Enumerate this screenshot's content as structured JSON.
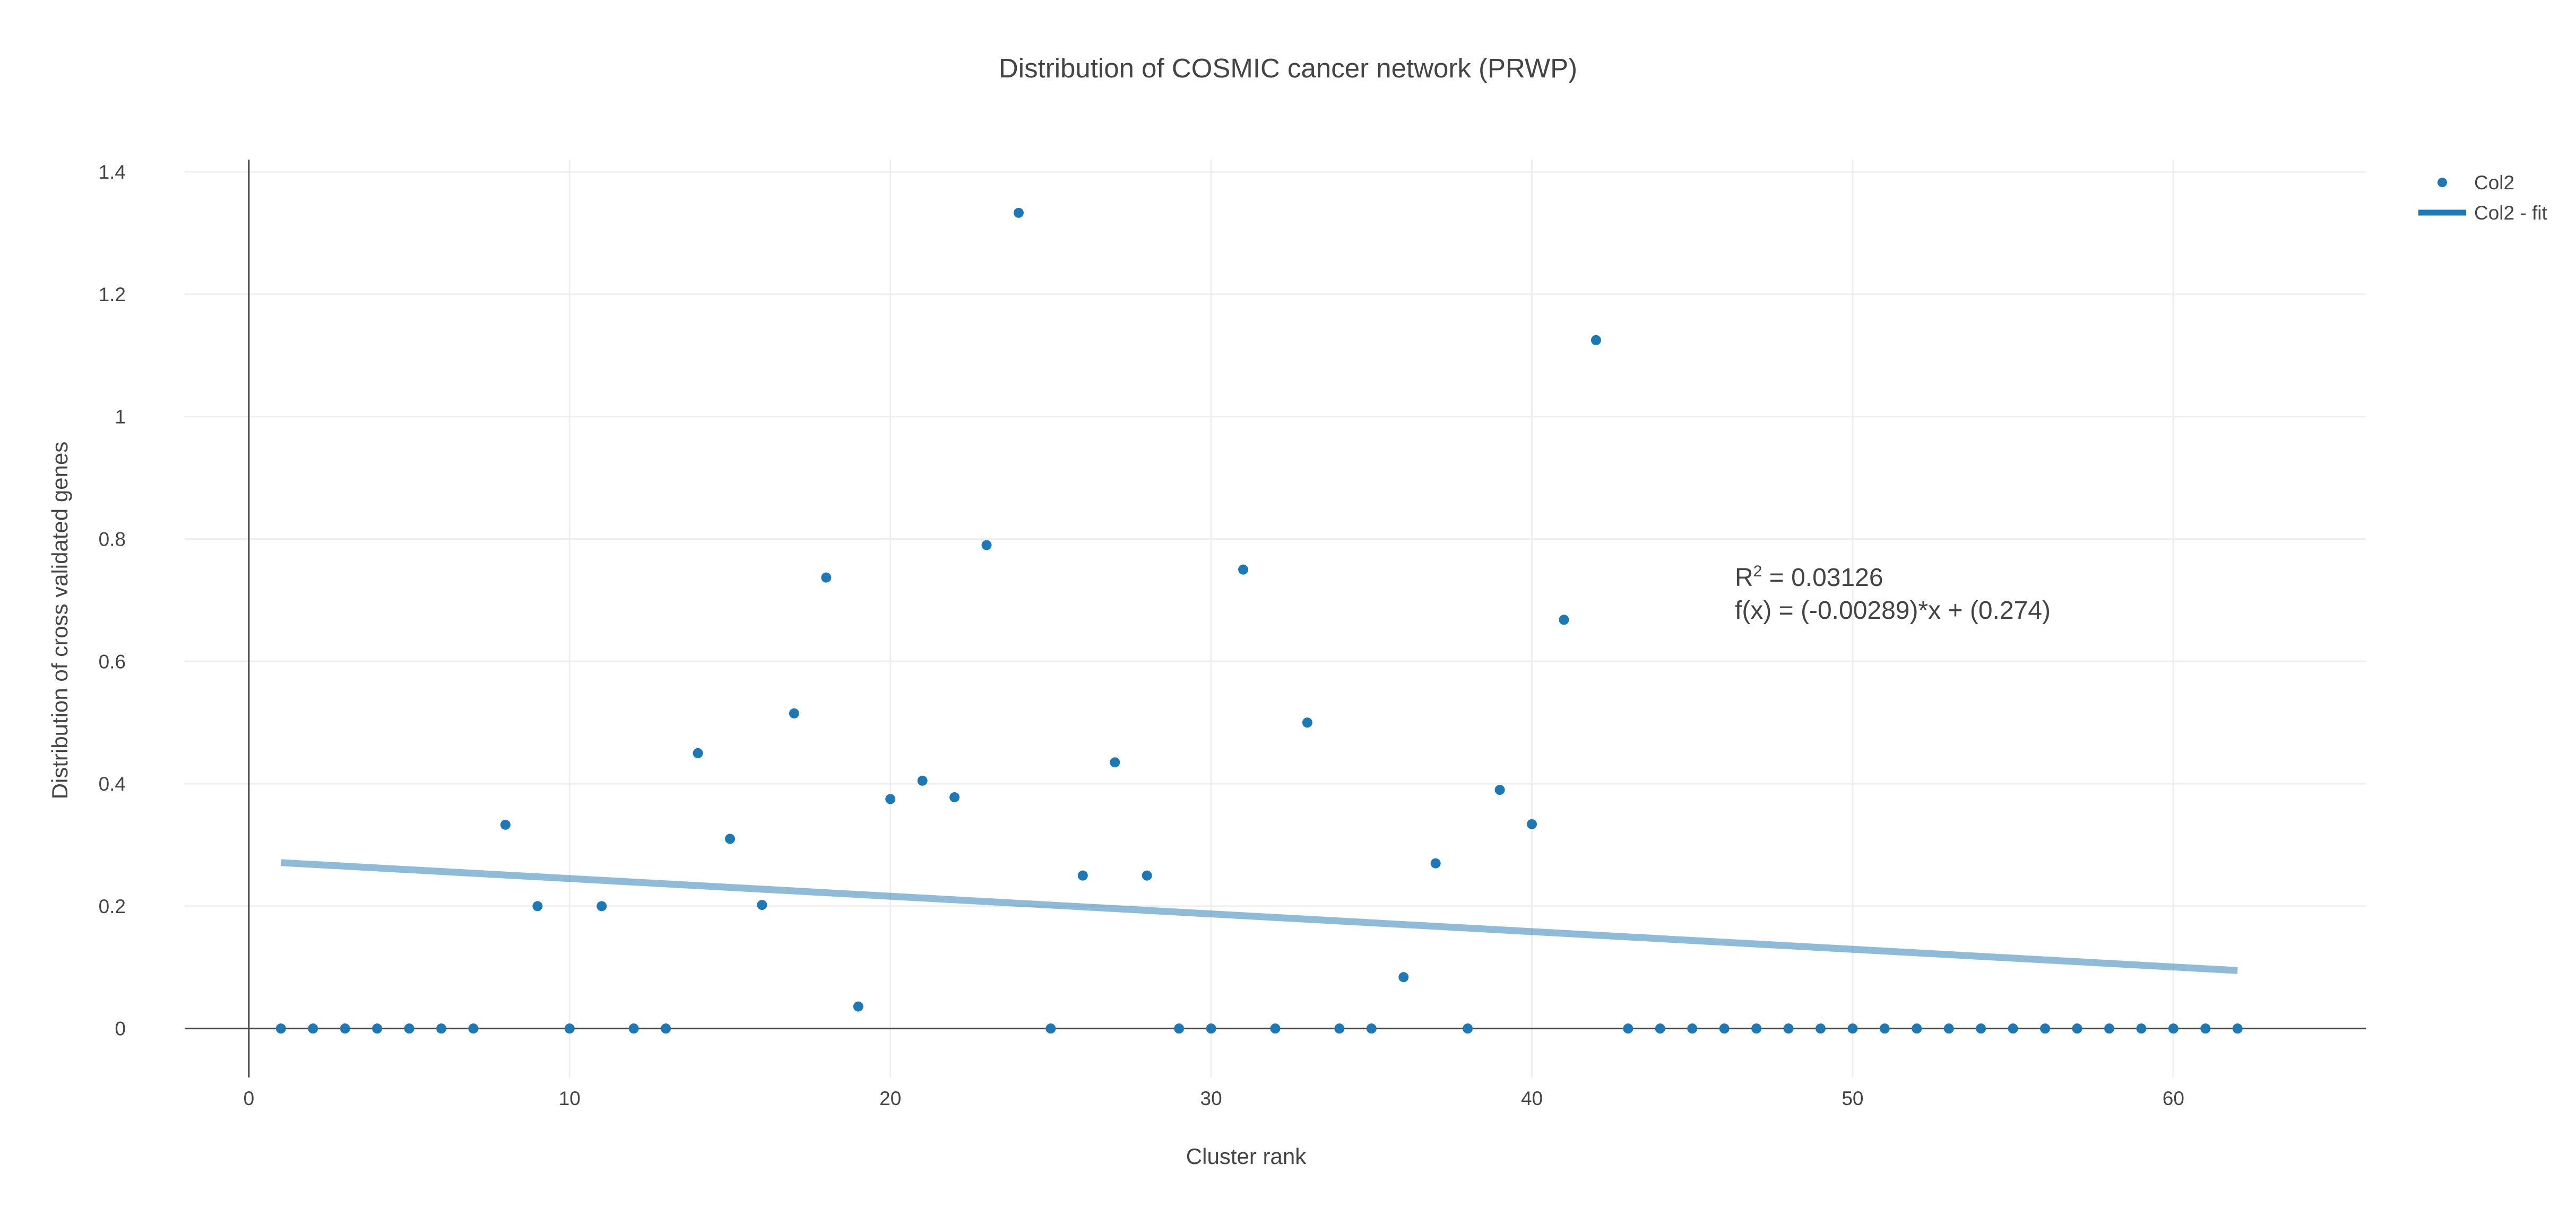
{
  "chart_data": {
    "type": "scatter",
    "title": "Distribution of COSMIC cancer network (PRWP)",
    "xlabel": "Cluster rank",
    "ylabel": "Distribution of cross validated genes",
    "xlim": [
      -2,
      66
    ],
    "ylim": [
      -0.08,
      1.42
    ],
    "x_ticks": [
      0,
      10,
      20,
      30,
      40,
      50,
      60
    ],
    "y_ticks": [
      0,
      0.2,
      0.4,
      0.6,
      0.8,
      1,
      1.2,
      1.4
    ],
    "x_tick_labels": [
      "0",
      "10",
      "20",
      "30",
      "40",
      "50",
      "60"
    ],
    "y_tick_labels": [
      "0",
      "0.2",
      "0.4",
      "0.6",
      "0.8",
      "1",
      "1.2",
      "1.4"
    ],
    "grid": true,
    "legend_position": "top-right",
    "series": [
      {
        "name": "Col2",
        "mode": "markers",
        "color": "#1f77b4",
        "x": [
          1,
          2,
          3,
          4,
          5,
          6,
          7,
          8,
          9,
          10,
          11,
          12,
          13,
          14,
          15,
          16,
          17,
          18,
          19,
          20,
          21,
          22,
          23,
          24,
          25,
          26,
          27,
          28,
          29,
          30,
          31,
          32,
          33,
          34,
          35,
          36,
          37,
          38,
          39,
          40,
          41,
          42,
          43,
          44,
          45,
          46,
          47,
          48,
          49,
          50,
          51,
          52,
          53,
          54,
          55,
          56,
          57,
          58,
          59,
          60,
          61,
          62
        ],
        "y": [
          0,
          0,
          0,
          0,
          0,
          0,
          0,
          0.333,
          0.2,
          0,
          0.2,
          0,
          0,
          0.45,
          0.31,
          0.202,
          0.515,
          0.737,
          0.036,
          0.375,
          0.405,
          0.378,
          0.79,
          1.333,
          0,
          0.25,
          0.435,
          0.25,
          0,
          0,
          0.75,
          0,
          0.5,
          0,
          0,
          0.084,
          0.27,
          0,
          0.39,
          0.334,
          0.668,
          1.125,
          0,
          0,
          0,
          0,
          0,
          0,
          0,
          0,
          0,
          0,
          0,
          0,
          0,
          0,
          0,
          0,
          0,
          0,
          0,
          0
        ]
      },
      {
        "name": "Col2 - fit",
        "mode": "lines",
        "color": "#1f77b4",
        "x": [
          1,
          62
        ],
        "y": [
          0.27111,
          0.09482
        ]
      }
    ],
    "annotation": {
      "r2_prefix": "R",
      "r2_superscript": "2",
      "r2_value": " = 0.03126",
      "equation": "f(x) = (-0.00289)*x + (0.274)"
    }
  }
}
